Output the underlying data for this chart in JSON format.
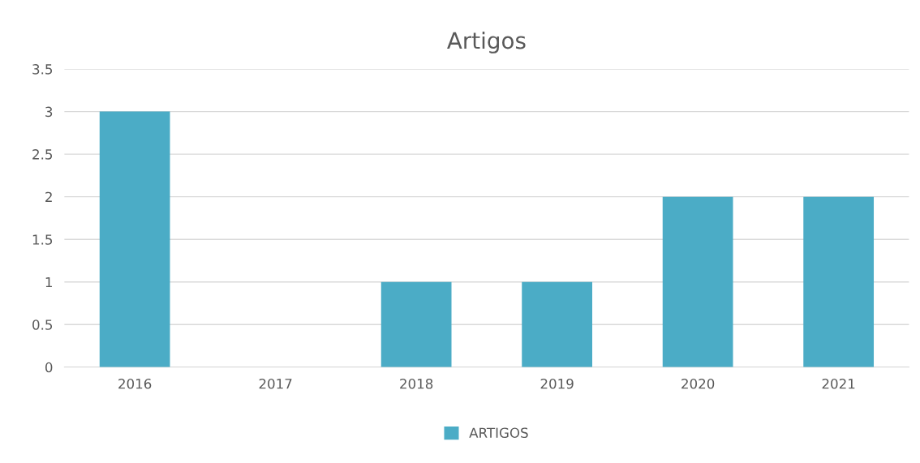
{
  "chart_data": {
    "type": "bar",
    "title": "Artigos",
    "categories": [
      "2016",
      "2017",
      "2018",
      "2019",
      "2020",
      "2021"
    ],
    "series": [
      {
        "name": "ARTIGOS",
        "color": "#4bacc6",
        "values": [
          3,
          0,
          1,
          1,
          2,
          2
        ]
      }
    ],
    "ylim": [
      0,
      3.5
    ],
    "yticks": [
      0,
      0.5,
      1,
      1.5,
      2,
      2.5,
      3,
      3.5
    ],
    "grid": "y",
    "legend": "bottom"
  }
}
